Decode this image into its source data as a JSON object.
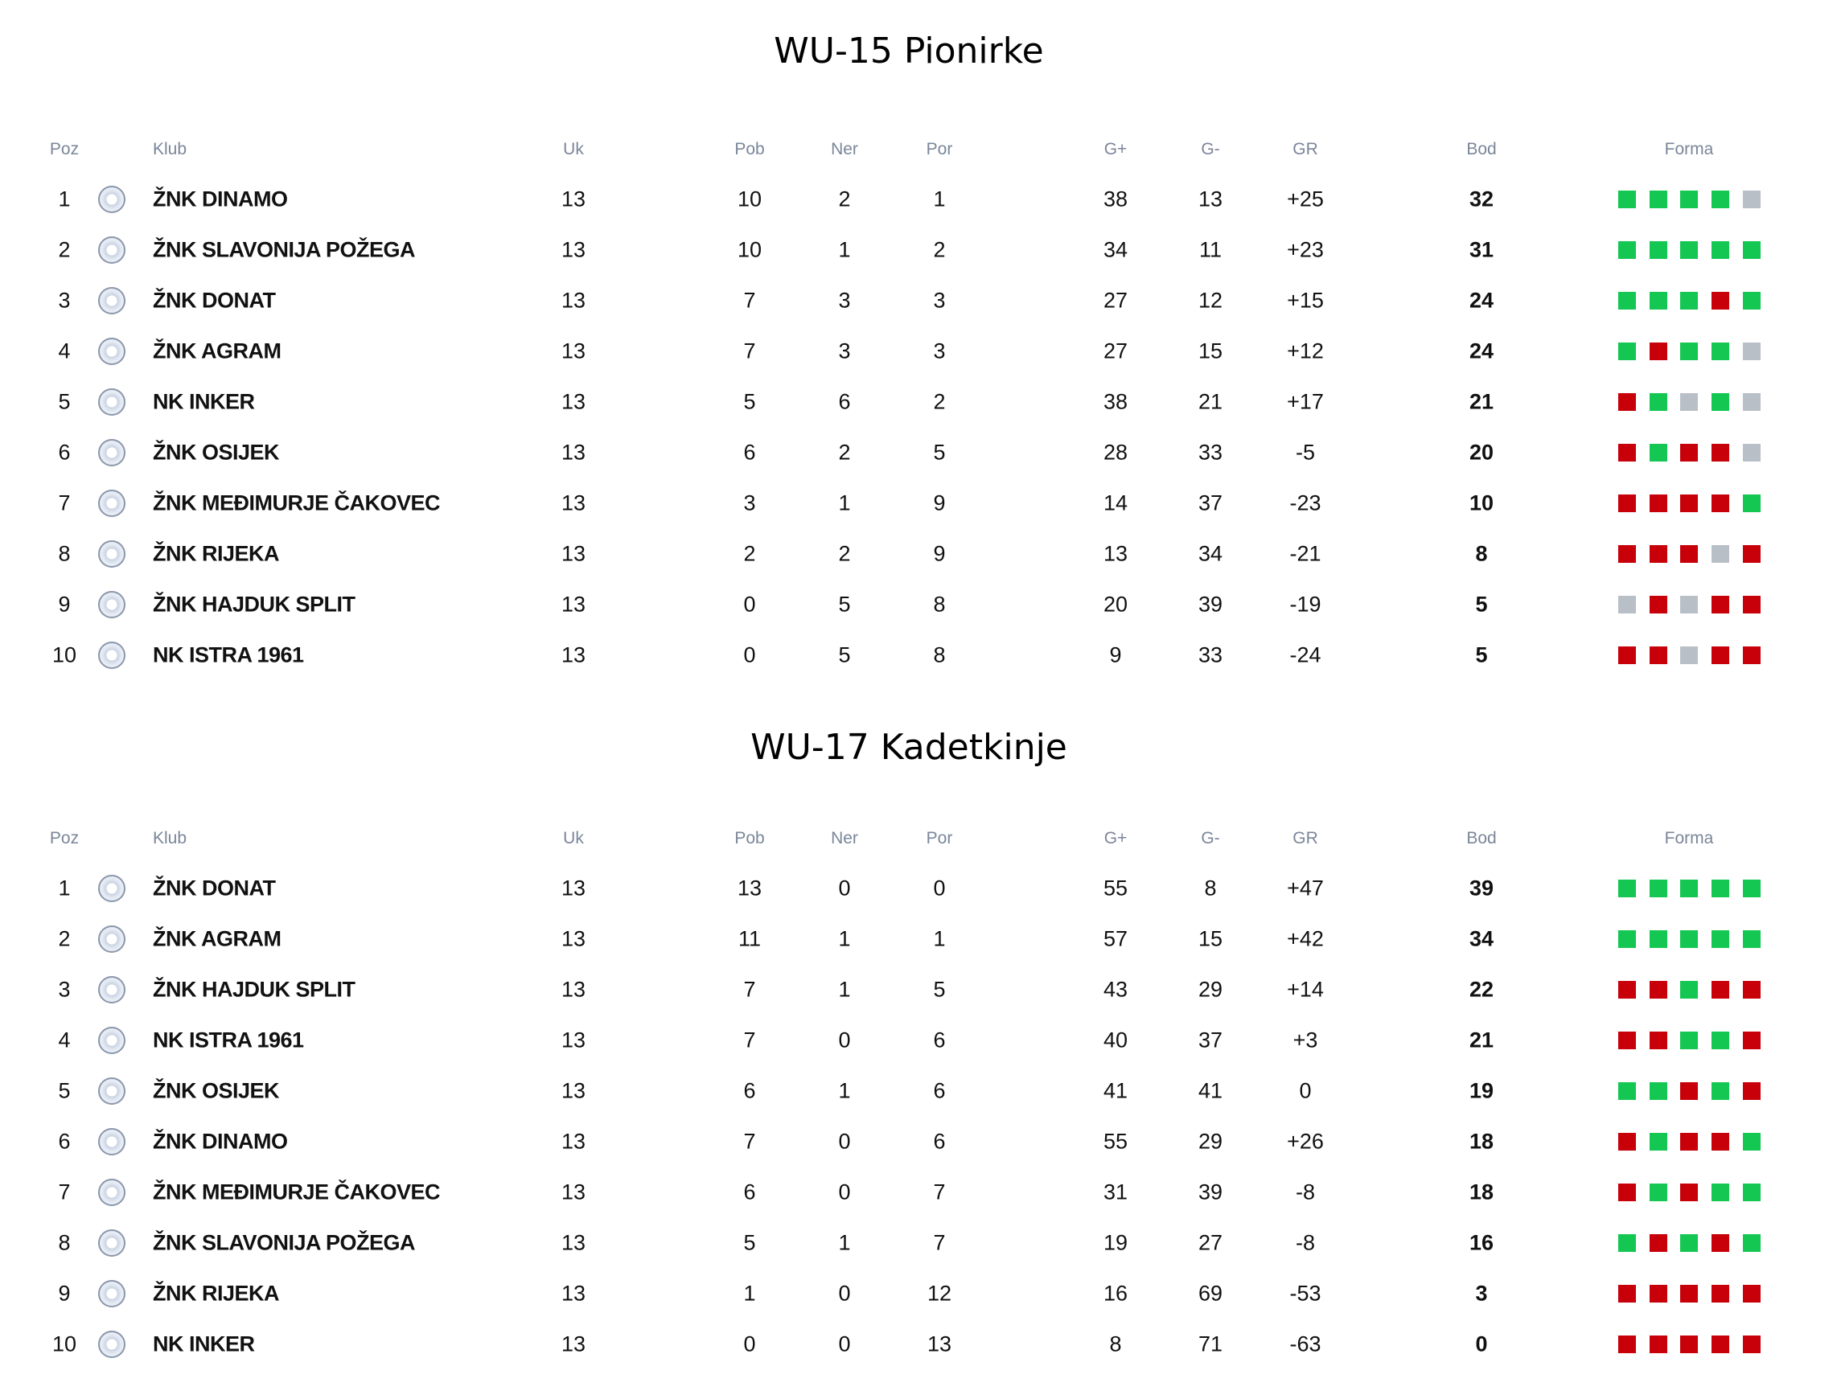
{
  "tables": [
    {
      "title": "WU-15 Pionirke",
      "headers": [
        "Poz",
        "Klub",
        "Uk",
        "Pob",
        "Ner",
        "Por",
        "G+",
        "G-",
        "GR",
        "Bod",
        "Forma"
      ],
      "rows": [
        {
          "pos": 1,
          "club": "ŽNK DINAMO",
          "uk": 13,
          "pob": 10,
          "ner": 2,
          "por": 1,
          "gplus": 38,
          "gminus": 13,
          "gr": "+25",
          "bod": 32,
          "form": [
            "#13c752",
            "#13c752",
            "#13c752",
            "#13c752",
            "#b9bfc7"
          ]
        },
        {
          "pos": 2,
          "club": "ŽNK SLAVONIJA POŽEGA",
          "uk": 13,
          "pob": 10,
          "ner": 1,
          "por": 2,
          "gplus": 34,
          "gminus": 11,
          "gr": "+23",
          "bod": 31,
          "form": [
            "#13c752",
            "#13c752",
            "#13c752",
            "#13c752",
            "#13c752"
          ]
        },
        {
          "pos": 3,
          "club": "ŽNK DONAT",
          "uk": 13,
          "pob": 7,
          "ner": 3,
          "por": 3,
          "gplus": 27,
          "gminus": 12,
          "gr": "+15",
          "bod": 24,
          "form": [
            "#13c752",
            "#13c752",
            "#13c752",
            "#c8000a",
            "#13c752"
          ]
        },
        {
          "pos": 4,
          "club": "ŽNK AGRAM",
          "uk": 13,
          "pob": 7,
          "ner": 3,
          "por": 3,
          "gplus": 27,
          "gminus": 15,
          "gr": "+12",
          "bod": 24,
          "form": [
            "#13c752",
            "#c8000a",
            "#13c752",
            "#13c752",
            "#b9bfc7"
          ]
        },
        {
          "pos": 5,
          "club": "NK INKER",
          "uk": 13,
          "pob": 5,
          "ner": 6,
          "por": 2,
          "gplus": 38,
          "gminus": 21,
          "gr": "+17",
          "bod": 21,
          "form": [
            "#c8000a",
            "#13c752",
            "#b9bfc7",
            "#13c752",
            "#b9bfc7"
          ]
        },
        {
          "pos": 6,
          "club": "ŽNK OSIJEK",
          "uk": 13,
          "pob": 6,
          "ner": 2,
          "por": 5,
          "gplus": 28,
          "gminus": 33,
          "gr": "-5",
          "bod": 20,
          "form": [
            "#c8000a",
            "#13c752",
            "#c8000a",
            "#c8000a",
            "#b9bfc7"
          ]
        },
        {
          "pos": 7,
          "club": "ŽNK MEĐIMURJE ČAKOVEC",
          "uk": 13,
          "pob": 3,
          "ner": 1,
          "por": 9,
          "gplus": 14,
          "gminus": 37,
          "gr": "-23",
          "bod": 10,
          "form": [
            "#c8000a",
            "#c8000a",
            "#c8000a",
            "#c8000a",
            "#13c752"
          ]
        },
        {
          "pos": 8,
          "club": "ŽNK RIJEKA",
          "uk": 13,
          "pob": 2,
          "ner": 2,
          "por": 9,
          "gplus": 13,
          "gminus": 34,
          "gr": "-21",
          "bod": 8,
          "form": [
            "#c8000a",
            "#c8000a",
            "#c8000a",
            "#b9bfc7",
            "#c8000a"
          ]
        },
        {
          "pos": 9,
          "club": "ŽNK HAJDUK SPLIT",
          "uk": 13,
          "pob": 0,
          "ner": 5,
          "por": 8,
          "gplus": 20,
          "gminus": 39,
          "gr": "-19",
          "bod": 5,
          "form": [
            "#b9bfc7",
            "#c8000a",
            "#b9bfc7",
            "#c8000a",
            "#c8000a"
          ]
        },
        {
          "pos": 10,
          "club": "NK ISTRA 1961",
          "uk": 13,
          "pob": 0,
          "ner": 5,
          "por": 8,
          "gplus": 9,
          "gminus": 33,
          "gr": "-24",
          "bod": 5,
          "form": [
            "#c8000a",
            "#c8000a",
            "#b9bfc7",
            "#c8000a",
            "#c8000a"
          ]
        }
      ]
    },
    {
      "title": "WU-17 Kadetkinje",
      "headers": [
        "Poz",
        "Klub",
        "Uk",
        "Pob",
        "Ner",
        "Por",
        "G+",
        "G-",
        "GR",
        "Bod",
        "Forma"
      ],
      "rows": [
        {
          "pos": 1,
          "club": "ŽNK DONAT",
          "uk": 13,
          "pob": 13,
          "ner": 0,
          "por": 0,
          "gplus": 55,
          "gminus": 8,
          "gr": "+47",
          "bod": 39,
          "form": [
            "#13c752",
            "#13c752",
            "#13c752",
            "#13c752",
            "#13c752"
          ]
        },
        {
          "pos": 2,
          "club": "ŽNK AGRAM",
          "uk": 13,
          "pob": 11,
          "ner": 1,
          "por": 1,
          "gplus": 57,
          "gminus": 15,
          "gr": "+42",
          "bod": 34,
          "form": [
            "#13c752",
            "#13c752",
            "#13c752",
            "#13c752",
            "#13c752"
          ]
        },
        {
          "pos": 3,
          "club": "ŽNK HAJDUK SPLIT",
          "uk": 13,
          "pob": 7,
          "ner": 1,
          "por": 5,
          "gplus": 43,
          "gminus": 29,
          "gr": "+14",
          "bod": 22,
          "form": [
            "#c8000a",
            "#c8000a",
            "#13c752",
            "#c8000a",
            "#c8000a"
          ]
        },
        {
          "pos": 4,
          "club": "NK ISTRA 1961",
          "uk": 13,
          "pob": 7,
          "ner": 0,
          "por": 6,
          "gplus": 40,
          "gminus": 37,
          "gr": "+3",
          "bod": 21,
          "form": [
            "#c8000a",
            "#c8000a",
            "#13c752",
            "#13c752",
            "#c8000a"
          ]
        },
        {
          "pos": 5,
          "club": "ŽNK OSIJEK",
          "uk": 13,
          "pob": 6,
          "ner": 1,
          "por": 6,
          "gplus": 41,
          "gminus": 41,
          "gr": "0",
          "bod": 19,
          "form": [
            "#13c752",
            "#13c752",
            "#c8000a",
            "#13c752",
            "#c8000a"
          ]
        },
        {
          "pos": 6,
          "club": "ŽNK DINAMO",
          "uk": 13,
          "pob": 7,
          "ner": 0,
          "por": 6,
          "gplus": 55,
          "gminus": 29,
          "gr": "+26",
          "bod": 18,
          "form": [
            "#c8000a",
            "#13c752",
            "#c8000a",
            "#c8000a",
            "#13c752"
          ]
        },
        {
          "pos": 7,
          "club": "ŽNK MEĐIMURJE ČAKOVEC",
          "uk": 13,
          "pob": 6,
          "ner": 0,
          "por": 7,
          "gplus": 31,
          "gminus": 39,
          "gr": "-8",
          "bod": 18,
          "form": [
            "#c8000a",
            "#13c752",
            "#c8000a",
            "#13c752",
            "#13c752"
          ]
        },
        {
          "pos": 8,
          "club": "ŽNK SLAVONIJA POŽEGA",
          "uk": 13,
          "pob": 5,
          "ner": 1,
          "por": 7,
          "gplus": 19,
          "gminus": 27,
          "gr": "-8",
          "bod": 16,
          "form": [
            "#13c752",
            "#c8000a",
            "#13c752",
            "#c8000a",
            "#13c752"
          ]
        },
        {
          "pos": 9,
          "club": "ŽNK RIJEKA",
          "uk": 13,
          "pob": 1,
          "ner": 0,
          "por": 12,
          "gplus": 16,
          "gminus": 69,
          "gr": "-53",
          "bod": 3,
          "form": [
            "#c8000a",
            "#c8000a",
            "#c8000a",
            "#c8000a",
            "#c8000a"
          ]
        },
        {
          "pos": 10,
          "club": "NK INKER",
          "uk": 13,
          "pob": 0,
          "ner": 0,
          "por": 13,
          "gplus": 8,
          "gminus": 71,
          "gr": "-63",
          "bod": 0,
          "form": [
            "#c8000a",
            "#c8000a",
            "#c8000a",
            "#c8000a",
            "#c8000a"
          ]
        }
      ]
    }
  ]
}
